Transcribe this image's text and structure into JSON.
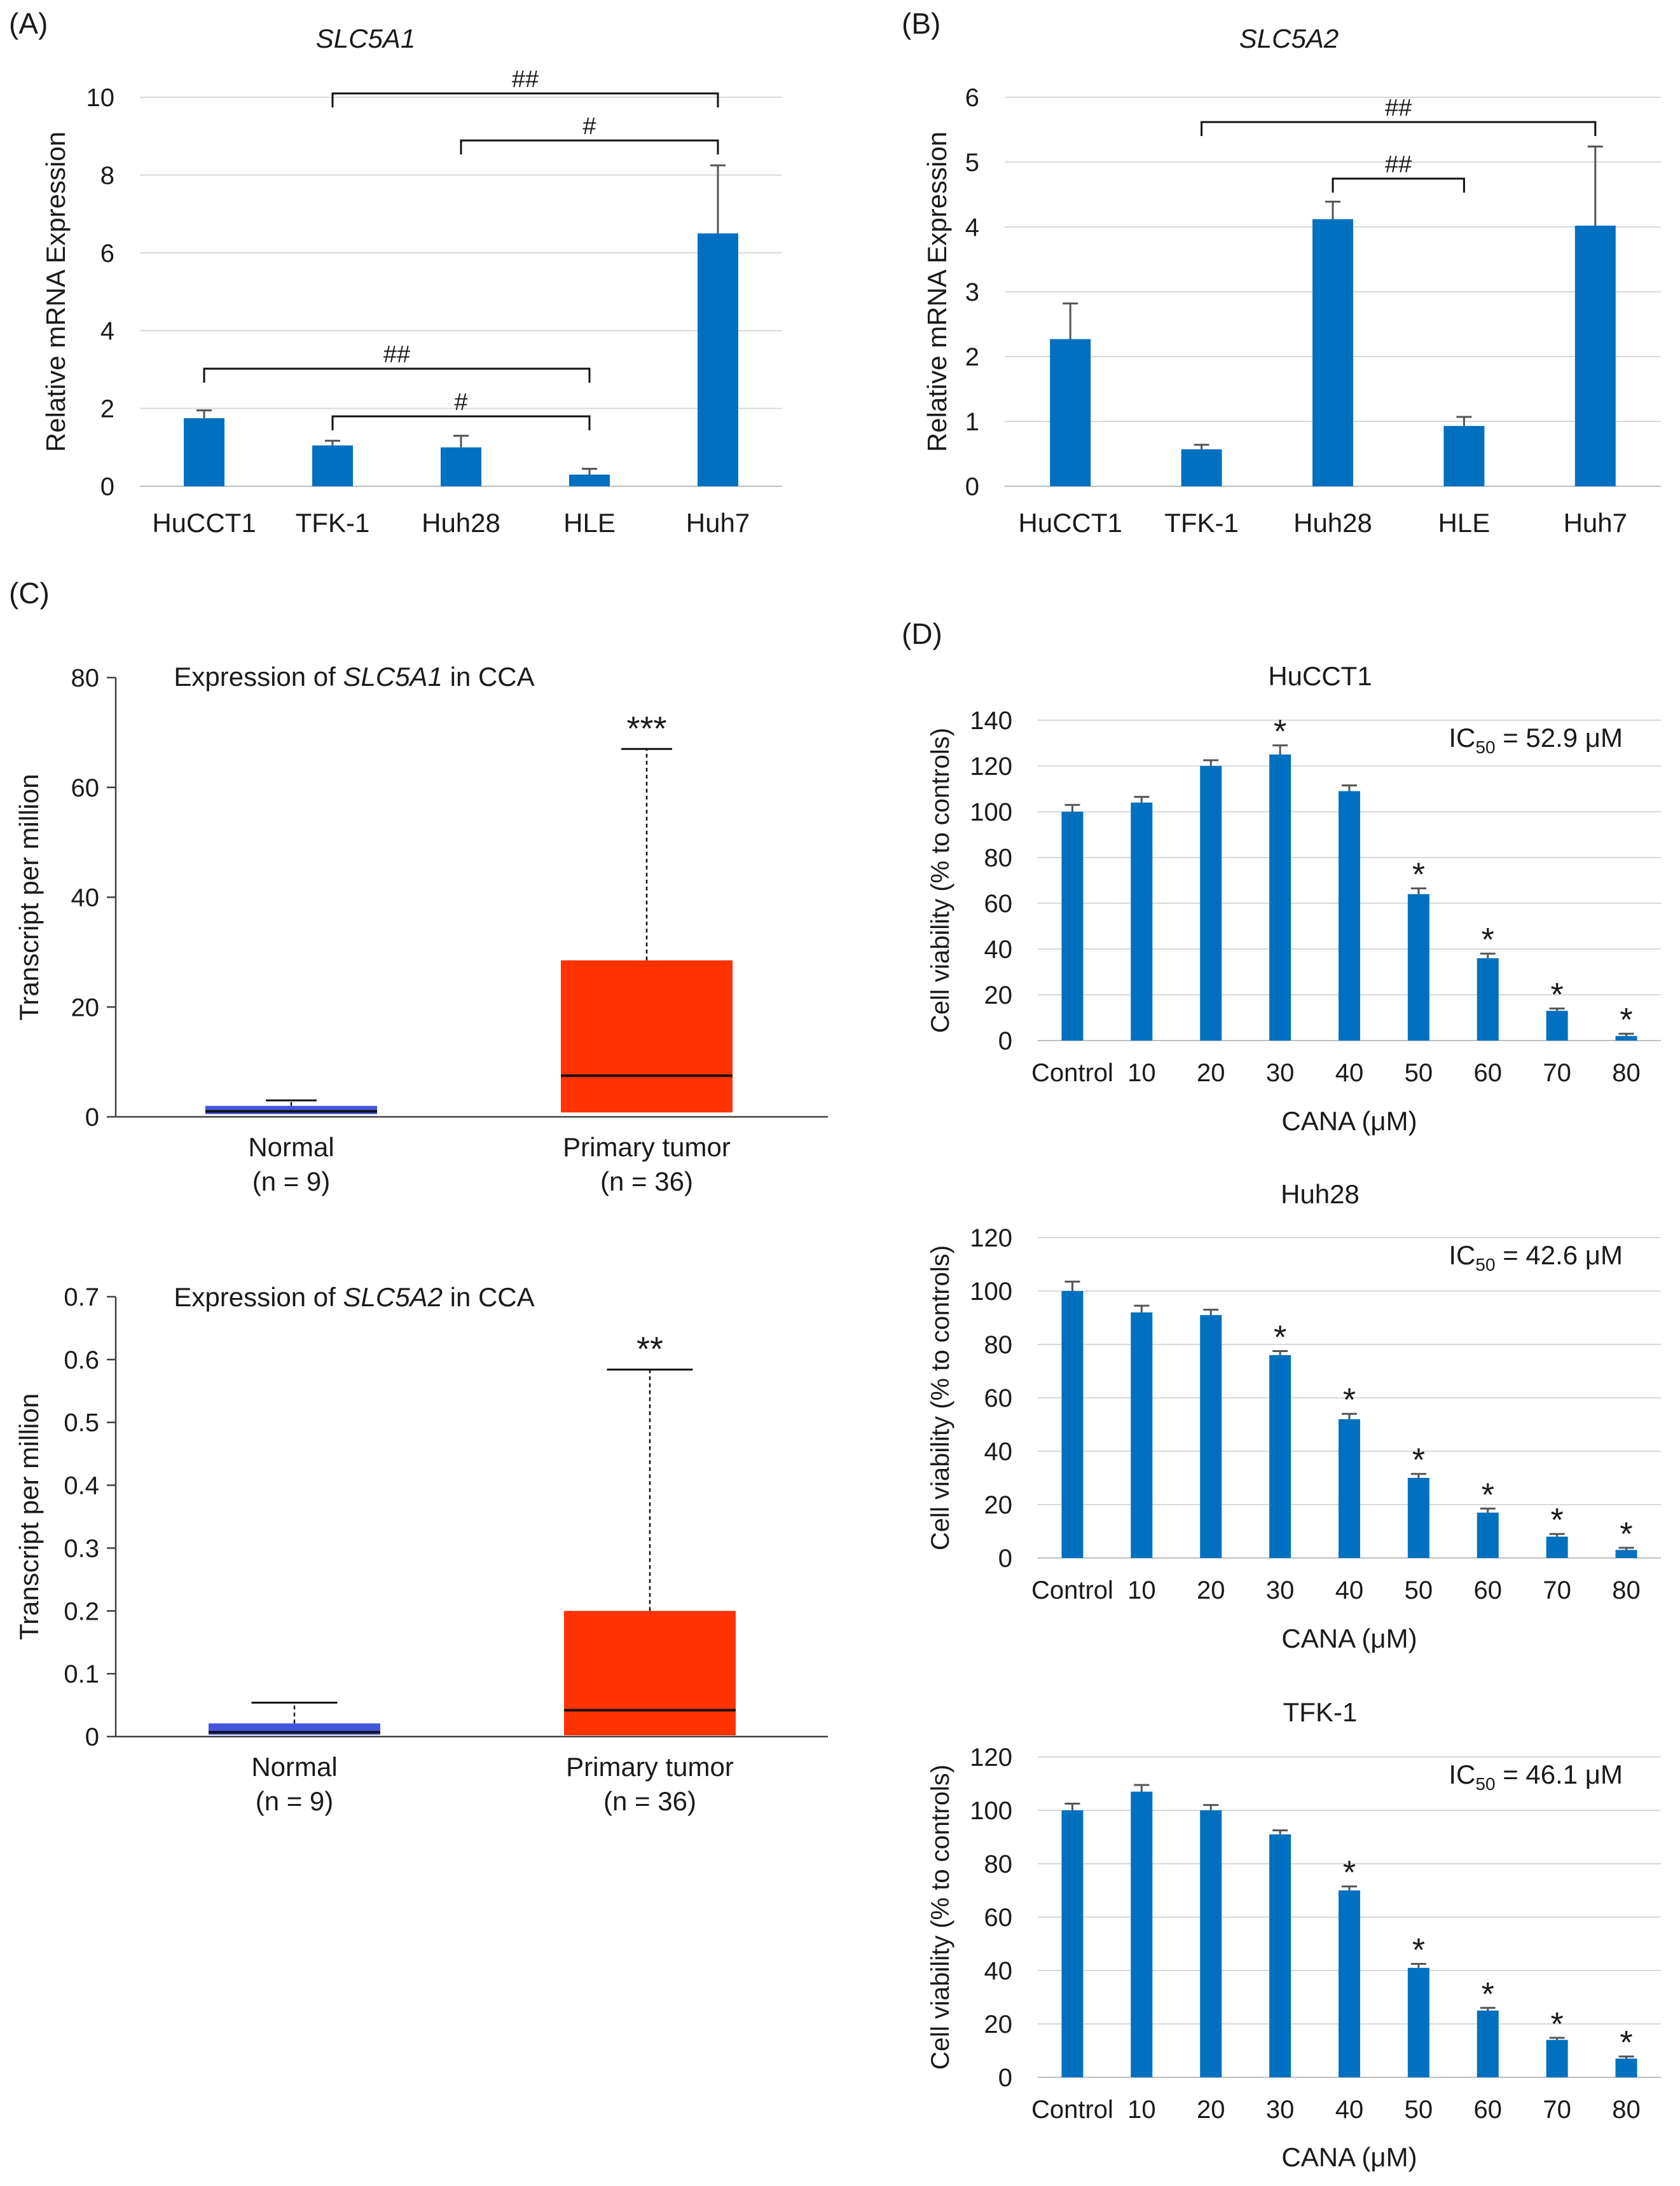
{
  "colors": {
    "bar": "#0070C0",
    "box_tumor": "#FF3300",
    "box_normal": "#4455DD",
    "grid": "#d9d9d9",
    "axis": "#404040"
  },
  "panel_labels": [
    "(A)",
    "(B)",
    "(C)",
    "(D)"
  ],
  "chart_data": [
    {
      "id": "A",
      "type": "bar",
      "title": "SLC5A1",
      "title_italic": true,
      "ylabel": "Relative mRNA Expression",
      "xlabel": "",
      "categories": [
        "HuCCT1",
        "TFK-1",
        "Huh28",
        "HLE",
        "Huh7"
      ],
      "values": [
        1.75,
        1.05,
        1.0,
        0.3,
        6.5
      ],
      "errors": [
        0.2,
        0.12,
        0.3,
        0.15,
        1.75
      ],
      "ylim": [
        0,
        10
      ],
      "yticks": [
        "0",
        "2",
        "4",
        "6",
        "8",
        "10"
      ],
      "grid": true,
      "brackets": [
        {
          "from": 1,
          "to": 4,
          "label": "##"
        },
        {
          "from": 2,
          "to": 4,
          "label": "#"
        },
        {
          "from": 0,
          "to": 3,
          "label": "##"
        },
        {
          "from": 1,
          "to": 3,
          "label": "#"
        }
      ]
    },
    {
      "id": "B",
      "type": "bar",
      "title": "SLC5A2",
      "title_italic": true,
      "ylabel": "Relative mRNA Expression",
      "xlabel": "",
      "categories": [
        "HuCCT1",
        "TFK-1",
        "Huh28",
        "HLE",
        "Huh7"
      ],
      "values": [
        2.27,
        0.57,
        4.12,
        0.93,
        4.02
      ],
      "errors": [
        0.55,
        0.07,
        0.27,
        0.14,
        1.22
      ],
      "ylim": [
        0,
        6
      ],
      "yticks": [
        "0",
        "1",
        "2",
        "3",
        "4",
        "5",
        "6"
      ],
      "grid": true,
      "brackets": [
        {
          "from": 1,
          "to": 4,
          "label": "##"
        },
        {
          "from": 2,
          "to": 3,
          "label": "##"
        }
      ]
    },
    {
      "id": "C1",
      "type": "box",
      "title_pre": "Expression of ",
      "title_gene": "SLC5A1",
      "title_post": " in CCA",
      "ylabel": "Transcript per million",
      "ylim": [
        0,
        80
      ],
      "yticks": [
        "0",
        "20",
        "40",
        "60",
        "80"
      ],
      "groups": [
        {
          "name": "Normal",
          "n": "(n = 9)",
          "q1": 0.5,
          "median": 1.0,
          "q3": 2.0,
          "whisker_low": 0.3,
          "whisker_high": 3.0,
          "color": "#4455DD"
        },
        {
          "name": "Primary tumor",
          "n": "(n = 36)",
          "q1": 0.8,
          "median": 7.5,
          "q3": 28.5,
          "whisker_low": 0.3,
          "whisker_high": 67.0,
          "color": "#FF3300"
        }
      ],
      "significance": "***"
    },
    {
      "id": "C2",
      "type": "box",
      "title_pre": "Expression of ",
      "title_gene": "SLC5A2",
      "title_post": " in CCA",
      "ylabel": "Transcript per million",
      "ylim": [
        0,
        0.7
      ],
      "yticks": [
        "0",
        "0.1",
        "0.2",
        "0.3",
        "0.4",
        "0.5",
        "0.6",
        "0.7"
      ],
      "groups": [
        {
          "name": "Normal",
          "n": "(n = 9)",
          "q1": 0.003,
          "median": 0.007,
          "q3": 0.021,
          "whisker_low": 0.0,
          "whisker_high": 0.054,
          "color": "#4455DD"
        },
        {
          "name": "Primary tumor",
          "n": "(n = 36)",
          "q1": 0.002,
          "median": 0.042,
          "q3": 0.2,
          "whisker_low": 0.0,
          "whisker_high": 0.584,
          "color": "#FF3300"
        }
      ],
      "significance": "**"
    },
    {
      "id": "D1",
      "type": "bar",
      "title": "HuCCT1",
      "ic50_pre": "IC",
      "ic50_sub": "50",
      "ic50_post": " = 52.9 μM",
      "ylabel": "Cell viability (% to controls)",
      "xlabel": "CANA (μM)",
      "categories": [
        "Control",
        "10",
        "20",
        "30",
        "40",
        "50",
        "60",
        "70",
        "80"
      ],
      "values": [
        100,
        104,
        120,
        125,
        109,
        64,
        36,
        13,
        2
      ],
      "errors": [
        3,
        2.5,
        2.5,
        4,
        2.5,
        2.5,
        2,
        1,
        1
      ],
      "significant": [
        false,
        false,
        false,
        true,
        false,
        true,
        true,
        true,
        true
      ],
      "ylim": [
        0,
        140
      ],
      "yticks": [
        "0",
        "20",
        "40",
        "60",
        "80",
        "100",
        "120",
        "140"
      ]
    },
    {
      "id": "D2",
      "type": "bar",
      "title": "Huh28",
      "ic50_pre": "IC",
      "ic50_sub": "50",
      "ic50_post": " = 42.6 μM",
      "ylabel": "Cell viability (% to controls)",
      "xlabel": "CANA (μM)",
      "categories": [
        "Control",
        "10",
        "20",
        "30",
        "40",
        "50",
        "60",
        "70",
        "80"
      ],
      "values": [
        100,
        92,
        91,
        76,
        52,
        30,
        17,
        8,
        3
      ],
      "errors": [
        3.5,
        2.5,
        2,
        1.5,
        2,
        1.5,
        1.5,
        1,
        0.8
      ],
      "significant": [
        false,
        false,
        false,
        true,
        true,
        true,
        true,
        true,
        true
      ],
      "ylim": [
        0,
        120
      ],
      "yticks": [
        "0",
        "20",
        "40",
        "60",
        "80",
        "100",
        "120"
      ]
    },
    {
      "id": "D3",
      "type": "bar",
      "title": "TFK-1",
      "ic50_pre": "IC",
      "ic50_sub": "50",
      "ic50_post": " = 46.1 μM",
      "ylabel": "Cell viability (% to controls)",
      "xlabel": "CANA (μM)",
      "categories": [
        "Control",
        "10",
        "20",
        "30",
        "40",
        "50",
        "60",
        "70",
        "80"
      ],
      "values": [
        100,
        107,
        100,
        91,
        70,
        41,
        25,
        14,
        7
      ],
      "errors": [
        2.5,
        2.5,
        2,
        1.5,
        1.5,
        1.5,
        1,
        0.8,
        0.8
      ],
      "significant": [
        false,
        false,
        false,
        false,
        true,
        true,
        true,
        true,
        true
      ],
      "ylim": [
        0,
        120
      ],
      "yticks": [
        "0",
        "20",
        "40",
        "60",
        "80",
        "100",
        "120"
      ]
    }
  ]
}
